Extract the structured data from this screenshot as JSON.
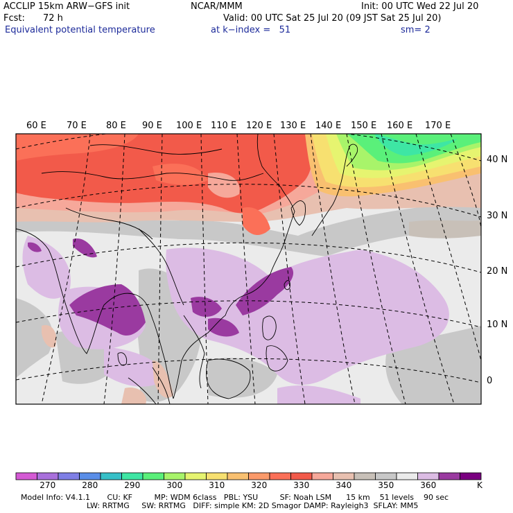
{
  "header": {
    "model": "ACCLIP 15km ARW−GFS init",
    "org": "NCAR/MMM",
    "init": "Init: 00 UTC Wed 22 Jul 20",
    "fcst_label": "Fcst:",
    "fcst_value": "72 h",
    "valid": "Valid: 00 UTC Sat 25 Jul 20 (09 JST Sat 25 Jul 20)",
    "field": "Equivalent potential temperature",
    "level": "at k−index =   51",
    "smoothing": "sm= 2"
  },
  "map": {
    "longitude_labels": [
      "60 E",
      "70 E",
      "80 E",
      "90 E",
      "100 E",
      "110 E",
      "120 E",
      "130 E",
      "140 E",
      "150 E",
      "160 E",
      "170 E"
    ],
    "latitude_labels": [
      "40 N",
      "30 N",
      "20 N",
      "10 N",
      "0"
    ]
  },
  "colorbar": {
    "unit": "K",
    "tick_labels": [
      "270",
      "280",
      "290",
      "300",
      "310",
      "320",
      "330",
      "340",
      "350",
      "360"
    ],
    "bins": [
      {
        "low": 265,
        "color": "#d45ad4"
      },
      {
        "low": 270,
        "color": "#a970dc"
      },
      {
        "low": 275,
        "color": "#7f7fe6"
      },
      {
        "low": 280,
        "color": "#5a8ee8"
      },
      {
        "low": 285,
        "color": "#36c0c8"
      },
      {
        "low": 290,
        "color": "#3ee6a4"
      },
      {
        "low": 295,
        "color": "#5af07a"
      },
      {
        "low": 300,
        "color": "#a8f46a"
      },
      {
        "low": 305,
        "color": "#e6f470"
      },
      {
        "low": 310,
        "color": "#f7e070"
      },
      {
        "low": 315,
        "color": "#f9c070"
      },
      {
        "low": 320,
        "color": "#fb9a6a"
      },
      {
        "low": 325,
        "color": "#fb7058"
      },
      {
        "low": 330,
        "color": "#f25a4a"
      },
      {
        "low": 335,
        "color": "#f6a89a"
      },
      {
        "low": 340,
        "color": "#e8c0b0"
      },
      {
        "low": 345,
        "color": "#c8c0b8"
      },
      {
        "low": 350,
        "color": "#c8c8c8"
      },
      {
        "low": 355,
        "color": "#ebebeb"
      },
      {
        "low": 360,
        "color": "#dcbce4"
      },
      {
        "low": 365,
        "color": "#9a3aa0"
      },
      {
        "low": 370,
        "color": "#7a0080"
      }
    ]
  },
  "model_info": {
    "line1": "Model Info: V4.1.1       CU: KF         MP: WDM 6class   PBL: YSU         SF: Noah LSM      15 km    51 levels    90 sec",
    "line2": "LW: RRTMG     SW: RRTMG   DIFF: simple KM: 2D Smagor DAMP: Rayleigh3  SFLAY: MM5"
  }
}
